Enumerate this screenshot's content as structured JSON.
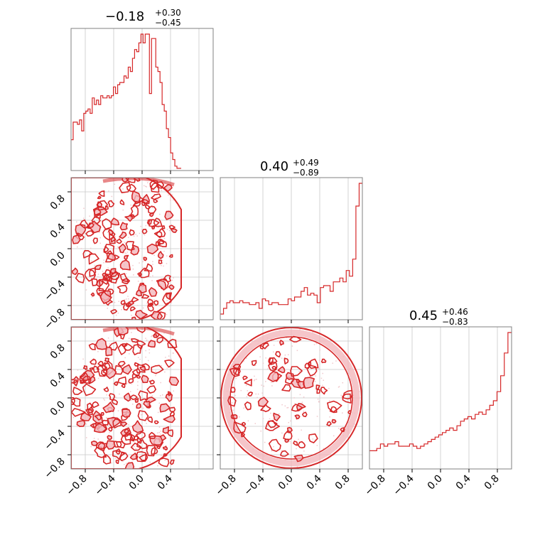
{
  "figure": {
    "background": "#ffffff",
    "accent_color": "#d62728",
    "grid_color": "#c8c8c8"
  },
  "chart_data": {
    "type": "corner",
    "color": "#d62728",
    "grid": true,
    "axis_range": [
      -1.0,
      1.0
    ],
    "tick_labels_x": {
      "col0": [
        "−0.8",
        "−0.4",
        "0.0",
        "0.4"
      ],
      "col1": [
        "−0.8",
        "−0.4",
        "0.0",
        "0.4",
        "0.8"
      ],
      "col2": [
        "−0.8",
        "−0.4",
        "0.0",
        "0.4",
        "0.8"
      ]
    },
    "tick_labels_y": {
      "row1": [
        "0.8",
        "0.4",
        "0.0",
        "−0.4",
        "−0.8"
      ],
      "row2": [
        "0.8",
        "0.4",
        "0.0",
        "−0.4",
        "−0.8"
      ]
    },
    "parameters": [
      {
        "median": "−0.18",
        "plus": "+0.30",
        "minus": "−0.45",
        "hist_range": [
          -1.0,
          0.55
        ],
        "hist_counts": [
          14,
          22,
          22,
          21,
          23,
          18,
          26,
          27,
          28,
          26,
          33,
          30,
          32,
          30,
          34,
          33,
          33,
          34,
          33,
          34,
          38,
          35,
          39,
          40,
          40,
          43,
          42,
          47,
          45,
          51,
          55,
          54,
          58,
          62,
          58,
          62,
          62,
          35,
          60,
          60,
          47,
          45,
          40,
          30,
          27,
          19,
          15,
          8,
          5,
          2,
          1,
          1
        ]
      },
      {
        "median": "0.40",
        "plus": "+0.49",
        "minus": "−0.89",
        "hist_range": [
          -1.0,
          1.0
        ],
        "hist_counts": [
          3,
          6,
          9,
          10,
          9,
          9,
          10,
          9,
          9,
          8,
          8,
          9,
          6,
          11,
          10,
          8,
          9,
          9,
          8,
          8,
          8,
          11,
          10,
          12,
          12,
          15,
          17,
          13,
          14,
          13,
          9,
          17,
          18,
          18,
          15,
          20,
          20,
          22,
          20,
          26,
          23,
          32,
          60,
          72
        ]
      },
      {
        "median": "0.45",
        "plus": "+0.46",
        "minus": "−0.83",
        "hist_range": [
          -1.0,
          1.0
        ],
        "hist_counts": [
          8,
          8,
          9,
          11,
          10,
          11,
          11,
          12,
          10,
          10,
          10,
          11,
          10,
          9,
          10,
          11,
          12,
          13,
          14,
          15,
          16,
          17,
          18,
          17,
          19,
          21,
          22,
          23,
          22,
          24,
          25,
          24,
          26,
          28,
          30,
          34,
          41,
          51,
          60
        ]
      }
    ],
    "pairs": [
      {
        "x_param": 0,
        "y_param": 1,
        "label": "row1-col0"
      },
      {
        "x_param": 0,
        "y_param": 2,
        "label": "row2-col0"
      },
      {
        "x_param": 1,
        "y_param": 2,
        "label": "row2-col1"
      }
    ]
  }
}
